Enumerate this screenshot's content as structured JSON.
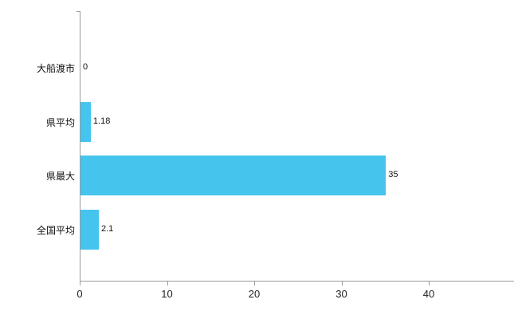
{
  "chart_data": {
    "type": "bar",
    "orientation": "horizontal",
    "title": "",
    "xlabel": "",
    "ylabel": "",
    "categories": [
      "大船渡市",
      "県平均",
      "県最大",
      "全国平均"
    ],
    "values": [
      0,
      1.18,
      35,
      2.1
    ],
    "value_labels": [
      "0",
      "1.18",
      "35",
      "2.1"
    ],
    "x_ticks": [
      0,
      10,
      20,
      30,
      40
    ],
    "xlim": [
      0,
      40
    ],
    "grid": false,
    "legend": "none",
    "bar_color": "#45c4ee"
  },
  "colors": {
    "axis": "#9b9b9b",
    "tick_text": "#222222",
    "label_text": "#111111",
    "background": "#ffffff"
  }
}
